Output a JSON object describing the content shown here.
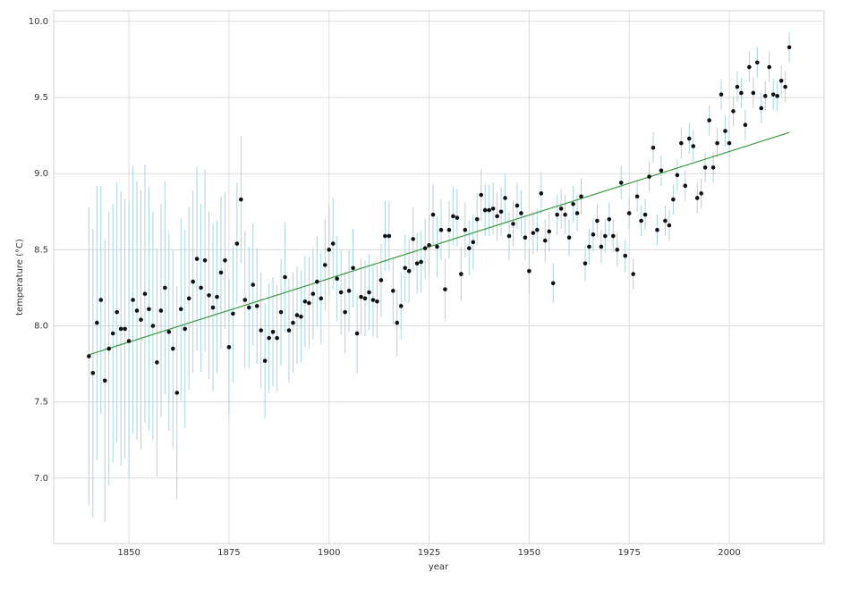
{
  "chart_data": {
    "type": "scatter",
    "x_label": "year",
    "y_label": "temperature (°C)",
    "x": [
      1840,
      1841,
      1842,
      1843,
      1844,
      1845,
      1846,
      1847,
      1848,
      1849,
      1850,
      1851,
      1852,
      1853,
      1854,
      1855,
      1856,
      1857,
      1858,
      1859,
      1860,
      1861,
      1862,
      1863,
      1864,
      1865,
      1866,
      1867,
      1868,
      1869,
      1870,
      1871,
      1872,
      1873,
      1874,
      1875,
      1876,
      1877,
      1878,
      1879,
      1880,
      1881,
      1882,
      1883,
      1884,
      1885,
      1886,
      1887,
      1888,
      1889,
      1890,
      1891,
      1892,
      1893,
      1894,
      1895,
      1896,
      1897,
      1898,
      1899,
      1900,
      1901,
      1902,
      1903,
      1904,
      1905,
      1906,
      1907,
      1908,
      1909,
      1910,
      1911,
      1912,
      1913,
      1914,
      1915,
      1916,
      1917,
      1918,
      1919,
      1920,
      1921,
      1922,
      1923,
      1924,
      1925,
      1926,
      1927,
      1928,
      1929,
      1930,
      1931,
      1932,
      1933,
      1934,
      1935,
      1936,
      1937,
      1938,
      1939,
      1940,
      1941,
      1942,
      1943,
      1944,
      1945,
      1946,
      1947,
      1948,
      1949,
      1950,
      1951,
      1952,
      1953,
      1954,
      1955,
      1956,
      1957,
      1958,
      1959,
      1960,
      1961,
      1962,
      1963,
      1964,
      1965,
      1966,
      1967,
      1968,
      1969,
      1970,
      1971,
      1972,
      1973,
      1974,
      1975,
      1976,
      1977,
      1978,
      1979,
      1980,
      1981,
      1982,
      1983,
      1984,
      1985,
      1986,
      1987,
      1988,
      1989,
      1990,
      1991,
      1992,
      1993,
      1994,
      1995,
      1996,
      1997,
      1998,
      1999,
      2000,
      2001,
      2002,
      2003,
      2004,
      2005,
      2006,
      2007,
      2008,
      2009,
      2010,
      2011,
      2012,
      2013,
      2014,
      2015
    ],
    "values": [
      7.8,
      7.69,
      8.02,
      8.17,
      7.64,
      7.85,
      7.95,
      8.09,
      7.98,
      7.98,
      7.9,
      8.17,
      8.1,
      8.04,
      8.21,
      8.11,
      8.0,
      7.76,
      8.1,
      8.25,
      7.96,
      7.85,
      7.56,
      8.11,
      7.98,
      8.18,
      8.29,
      8.44,
      8.25,
      8.43,
      8.2,
      8.12,
      8.19,
      8.35,
      8.43,
      7.86,
      8.08,
      8.54,
      8.83,
      8.17,
      8.12,
      8.27,
      8.13,
      7.97,
      7.77,
      7.92,
      7.96,
      7.92,
      8.09,
      8.32,
      7.97,
      8.02,
      8.07,
      8.06,
      8.16,
      8.15,
      8.21,
      8.29,
      8.18,
      8.4,
      8.5,
      8.54,
      8.31,
      8.22,
      8.09,
      8.23,
      8.38,
      7.95,
      8.19,
      8.18,
      8.22,
      8.17,
      8.16,
      8.3,
      8.59,
      8.59,
      8.23,
      8.02,
      8.13,
      8.38,
      8.36,
      8.57,
      8.41,
      8.42,
      8.51,
      8.53,
      8.73,
      8.52,
      8.63,
      8.24,
      8.63,
      8.72,
      8.71,
      8.34,
      8.63,
      8.51,
      8.55,
      8.7,
      8.86,
      8.76,
      8.76,
      8.77,
      8.72,
      8.75,
      8.84,
      8.59,
      8.67,
      8.79,
      8.74,
      8.58,
      8.36,
      8.61,
      8.63,
      8.87,
      8.56,
      8.62,
      8.28,
      8.73,
      8.77,
      8.73,
      8.58,
      8.8,
      8.74,
      8.85,
      8.41,
      8.52,
      8.6,
      8.69,
      8.52,
      8.59,
      8.7,
      8.59,
      8.5,
      8.94,
      8.46,
      8.74,
      8.34,
      8.85,
      8.69,
      8.73,
      8.98,
      9.17,
      8.63,
      9.02,
      8.69,
      8.66,
      8.83,
      8.99,
      9.2,
      8.92,
      9.23,
      9.18,
      8.84,
      8.87,
      9.04,
      9.35,
      9.04,
      9.2,
      9.52,
      9.28,
      9.2,
      9.41,
      9.57,
      9.53,
      9.32,
      9.7,
      9.53,
      9.73,
      9.43,
      9.51,
      9.7,
      9.52,
      9.51,
      9.61,
      9.57,
      9.83
    ],
    "errors": [
      0.98,
      0.95,
      0.9,
      0.75,
      0.93,
      0.9,
      0.85,
      0.85,
      0.9,
      0.85,
      0.9,
      0.88,
      0.85,
      0.85,
      0.85,
      0.8,
      0.75,
      0.75,
      0.7,
      0.7,
      0.65,
      0.65,
      0.7,
      0.6,
      0.65,
      0.6,
      0.6,
      0.6,
      0.55,
      0.6,
      0.55,
      0.55,
      0.5,
      0.5,
      0.45,
      0.45,
      0.45,
      0.4,
      0.42,
      0.45,
      0.4,
      0.4,
      0.38,
      0.38,
      0.38,
      0.36,
      0.36,
      0.35,
      0.35,
      0.36,
      0.34,
      0.33,
      0.32,
      0.3,
      0.3,
      0.3,
      0.3,
      0.3,
      0.3,
      0.3,
      0.3,
      0.3,
      0.28,
      0.28,
      0.27,
      0.27,
      0.26,
      0.26,
      0.25,
      0.25,
      0.25,
      0.24,
      0.24,
      0.24,
      0.23,
      0.23,
      0.22,
      0.22,
      0.22,
      0.22,
      0.21,
      0.21,
      0.2,
      0.2,
      0.2,
      0.2,
      0.2,
      0.2,
      0.2,
      0.2,
      0.19,
      0.19,
      0.19,
      0.18,
      0.18,
      0.18,
      0.18,
      0.17,
      0.17,
      0.17,
      0.17,
      0.17,
      0.16,
      0.16,
      0.16,
      0.16,
      0.15,
      0.15,
      0.15,
      0.15,
      0.15,
      0.14,
      0.14,
      0.14,
      0.14,
      0.13,
      0.13,
      0.13,
      0.13,
      0.13,
      0.12,
      0.12,
      0.12,
      0.12,
      0.12,
      0.12,
      0.11,
      0.11,
      0.11,
      0.11,
      0.11,
      0.11,
      0.11,
      0.11,
      0.11,
      0.1,
      0.1,
      0.1,
      0.1,
      0.1,
      0.1,
      0.1,
      0.1,
      0.1,
      0.1,
      0.1,
      0.1,
      0.1,
      0.1,
      0.1,
      0.1,
      0.1,
      0.1,
      0.1,
      0.1,
      0.1,
      0.1,
      0.1,
      0.1,
      0.1,
      0.1,
      0.1,
      0.1,
      0.1,
      0.1,
      0.1,
      0.1,
      0.1,
      0.1,
      0.1,
      0.1,
      0.1,
      0.1,
      0.1,
      0.1,
      0.1
    ],
    "color": "#111111",
    "error_color": "#a8d4e6",
    "trend": {
      "type": "line",
      "x": [
        1840,
        2015
      ],
      "values": [
        7.81,
        9.27
      ],
      "color": "#3a9a3a"
    },
    "xlim": [
      1831.2,
      2023.7
    ],
    "ylim": [
      6.57,
      10.07
    ],
    "xticks": [
      1850,
      1875,
      1900,
      1925,
      1950,
      1975,
      2000
    ],
    "yticks": [
      {
        "value": 7,
        "label": "7.0"
      },
      7.5,
      {
        "value": 8,
        "label": "8.0"
      },
      8.5,
      {
        "value": 9,
        "label": "9.0"
      },
      9.5,
      {
        "value": 10,
        "label": "10.0"
      }
    ],
    "grid": true
  }
}
